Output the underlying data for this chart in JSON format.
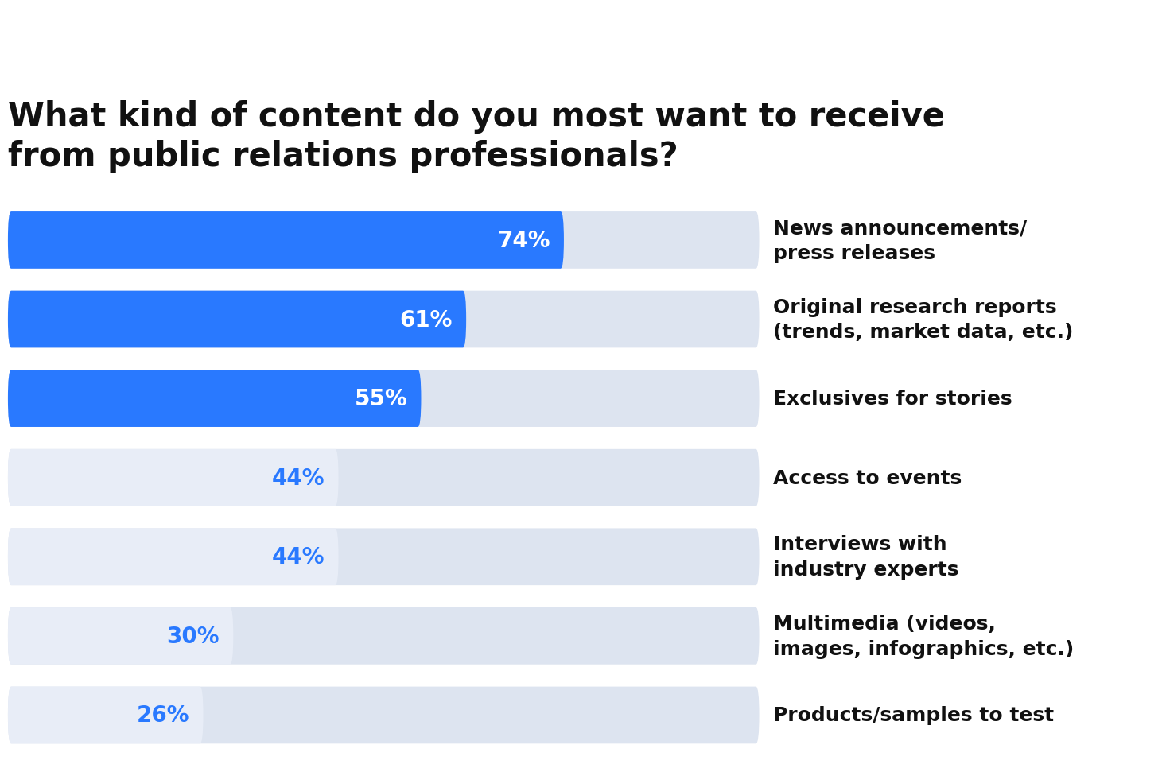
{
  "title": "What kind of content do you most want to receive\nfrom public relations professionals?",
  "categories": [
    "News announcements/\npress releases",
    "Original research reports\n(trends, market data, etc.)",
    "Exclusives for stories",
    "Access to events",
    "Interviews with\nindustry experts",
    "Multimedia (videos,\nimages, infographics, etc.)",
    "Products/samples to test"
  ],
  "values": [
    74,
    61,
    55,
    44,
    44,
    30,
    26
  ],
  "bar_max": 82,
  "bar_colors_filled": [
    "#2979ff",
    "#2979ff",
    "#2979ff",
    "#e8edf7",
    "#e8edf7",
    "#e8edf7",
    "#e8edf7"
  ],
  "bar_colors_bg": [
    "#dde4f0",
    "#dde4f0",
    "#dde4f0",
    "#dde4f0",
    "#dde4f0",
    "#dde4f0",
    "#dde4f0"
  ],
  "bar_border_colors": [
    "none",
    "none",
    "none",
    "#2979ff",
    "#2979ff",
    "#2979ff",
    "#2979ff"
  ],
  "label_colors": [
    "#ffffff",
    "#ffffff",
    "#ffffff",
    "#2979ff",
    "#2979ff",
    "#2979ff",
    "#2979ff"
  ],
  "background_color": "#ffffff",
  "title_fontsize": 30,
  "label_fontsize": 20,
  "category_fontsize": 18
}
